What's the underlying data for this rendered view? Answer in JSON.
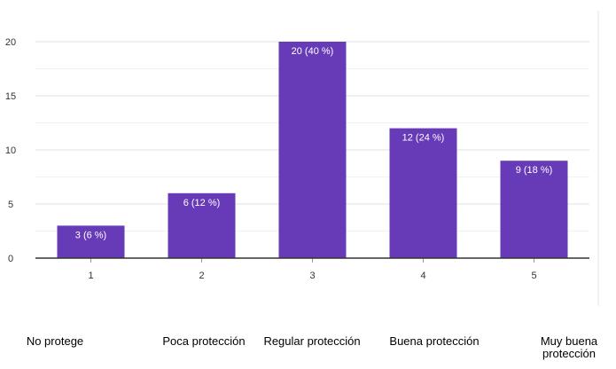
{
  "chart_data": {
    "type": "bar",
    "categories": [
      "1",
      "2",
      "3",
      "4",
      "5"
    ],
    "values": [
      3,
      6,
      20,
      12,
      9
    ],
    "data_labels": [
      "3 (6 %)",
      "6 (12 %)",
      "20 (40 %)",
      "12 (24 %)",
      "9 (18 %)"
    ],
    "yticks": [
      "0",
      "5",
      "10",
      "15",
      "20"
    ],
    "ylim": [
      0,
      20
    ],
    "grid": true,
    "bar_color": "#673ab7",
    "category_descriptions": [
      "No protege",
      "Poca protección",
      "Regular protección",
      "Buena protección",
      "Muy buena protección"
    ]
  }
}
